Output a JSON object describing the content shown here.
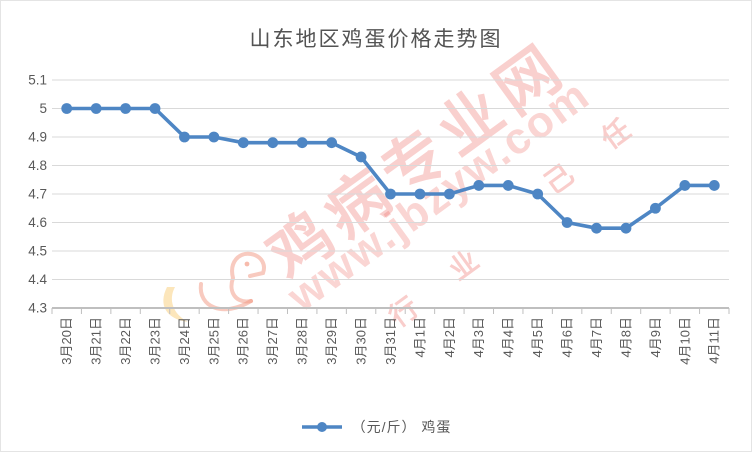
{
  "chart_data": {
    "type": "line",
    "title": "山东地区鸡蛋价格走势图",
    "legend": "（元/斤） 鸡蛋",
    "categories": [
      "3月20日",
      "3月21日",
      "3月22日",
      "3月23日",
      "3月24日",
      "3月25日",
      "3月26日",
      "3月27日",
      "3月28日",
      "3月29日",
      "3月30日",
      "3月31日",
      "4月1日",
      "4月2日",
      "4月3日",
      "4月4日",
      "4月5日",
      "4月6日",
      "4月7日",
      "4月8日",
      "4月9日",
      "4月10日",
      "4月11日"
    ],
    "series": [
      {
        "name": "（元/斤） 鸡蛋",
        "values": [
          5.0,
          5.0,
          5.0,
          5.0,
          4.9,
          4.9,
          4.88,
          4.88,
          4.88,
          4.88,
          4.83,
          4.7,
          4.7,
          4.7,
          4.73,
          4.73,
          4.7,
          4.6,
          4.58,
          4.58,
          4.65,
          4.73,
          4.73
        ]
      }
    ],
    "xlabel": "",
    "ylabel": "",
    "ylim": [
      4.3,
      5.1
    ],
    "yticks": [
      "5.1",
      "5",
      "4.9",
      "4.8",
      "4.7",
      "4.6",
      "4.5",
      "4.4",
      "4.3"
    ],
    "grid": true,
    "legend_position": "bottom",
    "marker": "circle",
    "line_color": "#4E86C4"
  },
  "watermark": {
    "site_name": "鸡病专业网",
    "site_url": "www.jbzyw.com",
    "fragments": [
      "行",
      "业",
      "己",
      "任"
    ]
  },
  "colors": {
    "line": "#4E86C4",
    "title_text": "#535353",
    "axis_text": "#595959",
    "gridline": "#D9D9D9",
    "axis_line": "#BFBFBF",
    "watermark_red": "#EB625C",
    "logo_pink": "#F29680",
    "logo_yellow": "#FACD78"
  }
}
